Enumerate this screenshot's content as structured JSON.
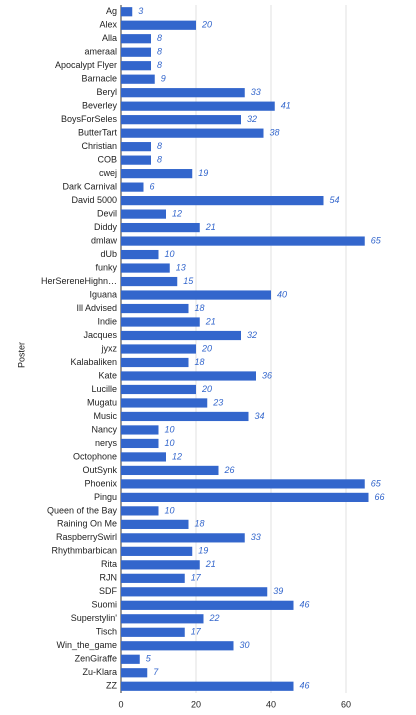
{
  "chart_data": {
    "type": "bar",
    "orientation": "horizontal",
    "y_label": "Poster",
    "color": "#3366cc",
    "categories": [
      "Ag",
      "Alex",
      "Alla",
      "ameraal",
      "Apocalypt Flyer",
      "Barnacle",
      "Beryl",
      "Beverley",
      "BoysForSeles",
      "ButterTart",
      "Christian",
      "COB",
      "cwej",
      "Dark Carnival",
      "David 5000",
      "Devil",
      "Diddy",
      "dmlaw",
      "dUb",
      "funky",
      "HerSereneHighn…",
      "Iguana",
      "Ill Advised",
      "Indie",
      "Jacques",
      "jyxz",
      "Kalabaliken",
      "Kate",
      "Lucille",
      "Mugatu",
      "Music",
      "Nancy",
      "nerys",
      "Octophone",
      "OutSynk",
      "Phoenix",
      "Pingu",
      "Queen of the Bay",
      "Raining On Me",
      "RaspberrySwirl",
      "Rhythmbarbican",
      "Rita",
      "RJN",
      "SDF",
      "Suomi",
      "Superstylin'",
      "Tisch",
      "Win_the_game",
      "ZenGiraffe",
      "Zu-Klara",
      "ZZ"
    ],
    "values": [
      3,
      20,
      8,
      8,
      8,
      9,
      33,
      41,
      32,
      38,
      8,
      8,
      19,
      6,
      54,
      12,
      21,
      65,
      10,
      13,
      15,
      40,
      18,
      21,
      32,
      20,
      18,
      36,
      20,
      23,
      34,
      10,
      10,
      12,
      26,
      65,
      66,
      10,
      18,
      33,
      19,
      21,
      17,
      39,
      46,
      22,
      17,
      30,
      5,
      7,
      46
    ],
    "xlim": [
      0,
      72
    ],
    "xticks": [
      0,
      20,
      40,
      60
    ],
    "grid": true
  }
}
